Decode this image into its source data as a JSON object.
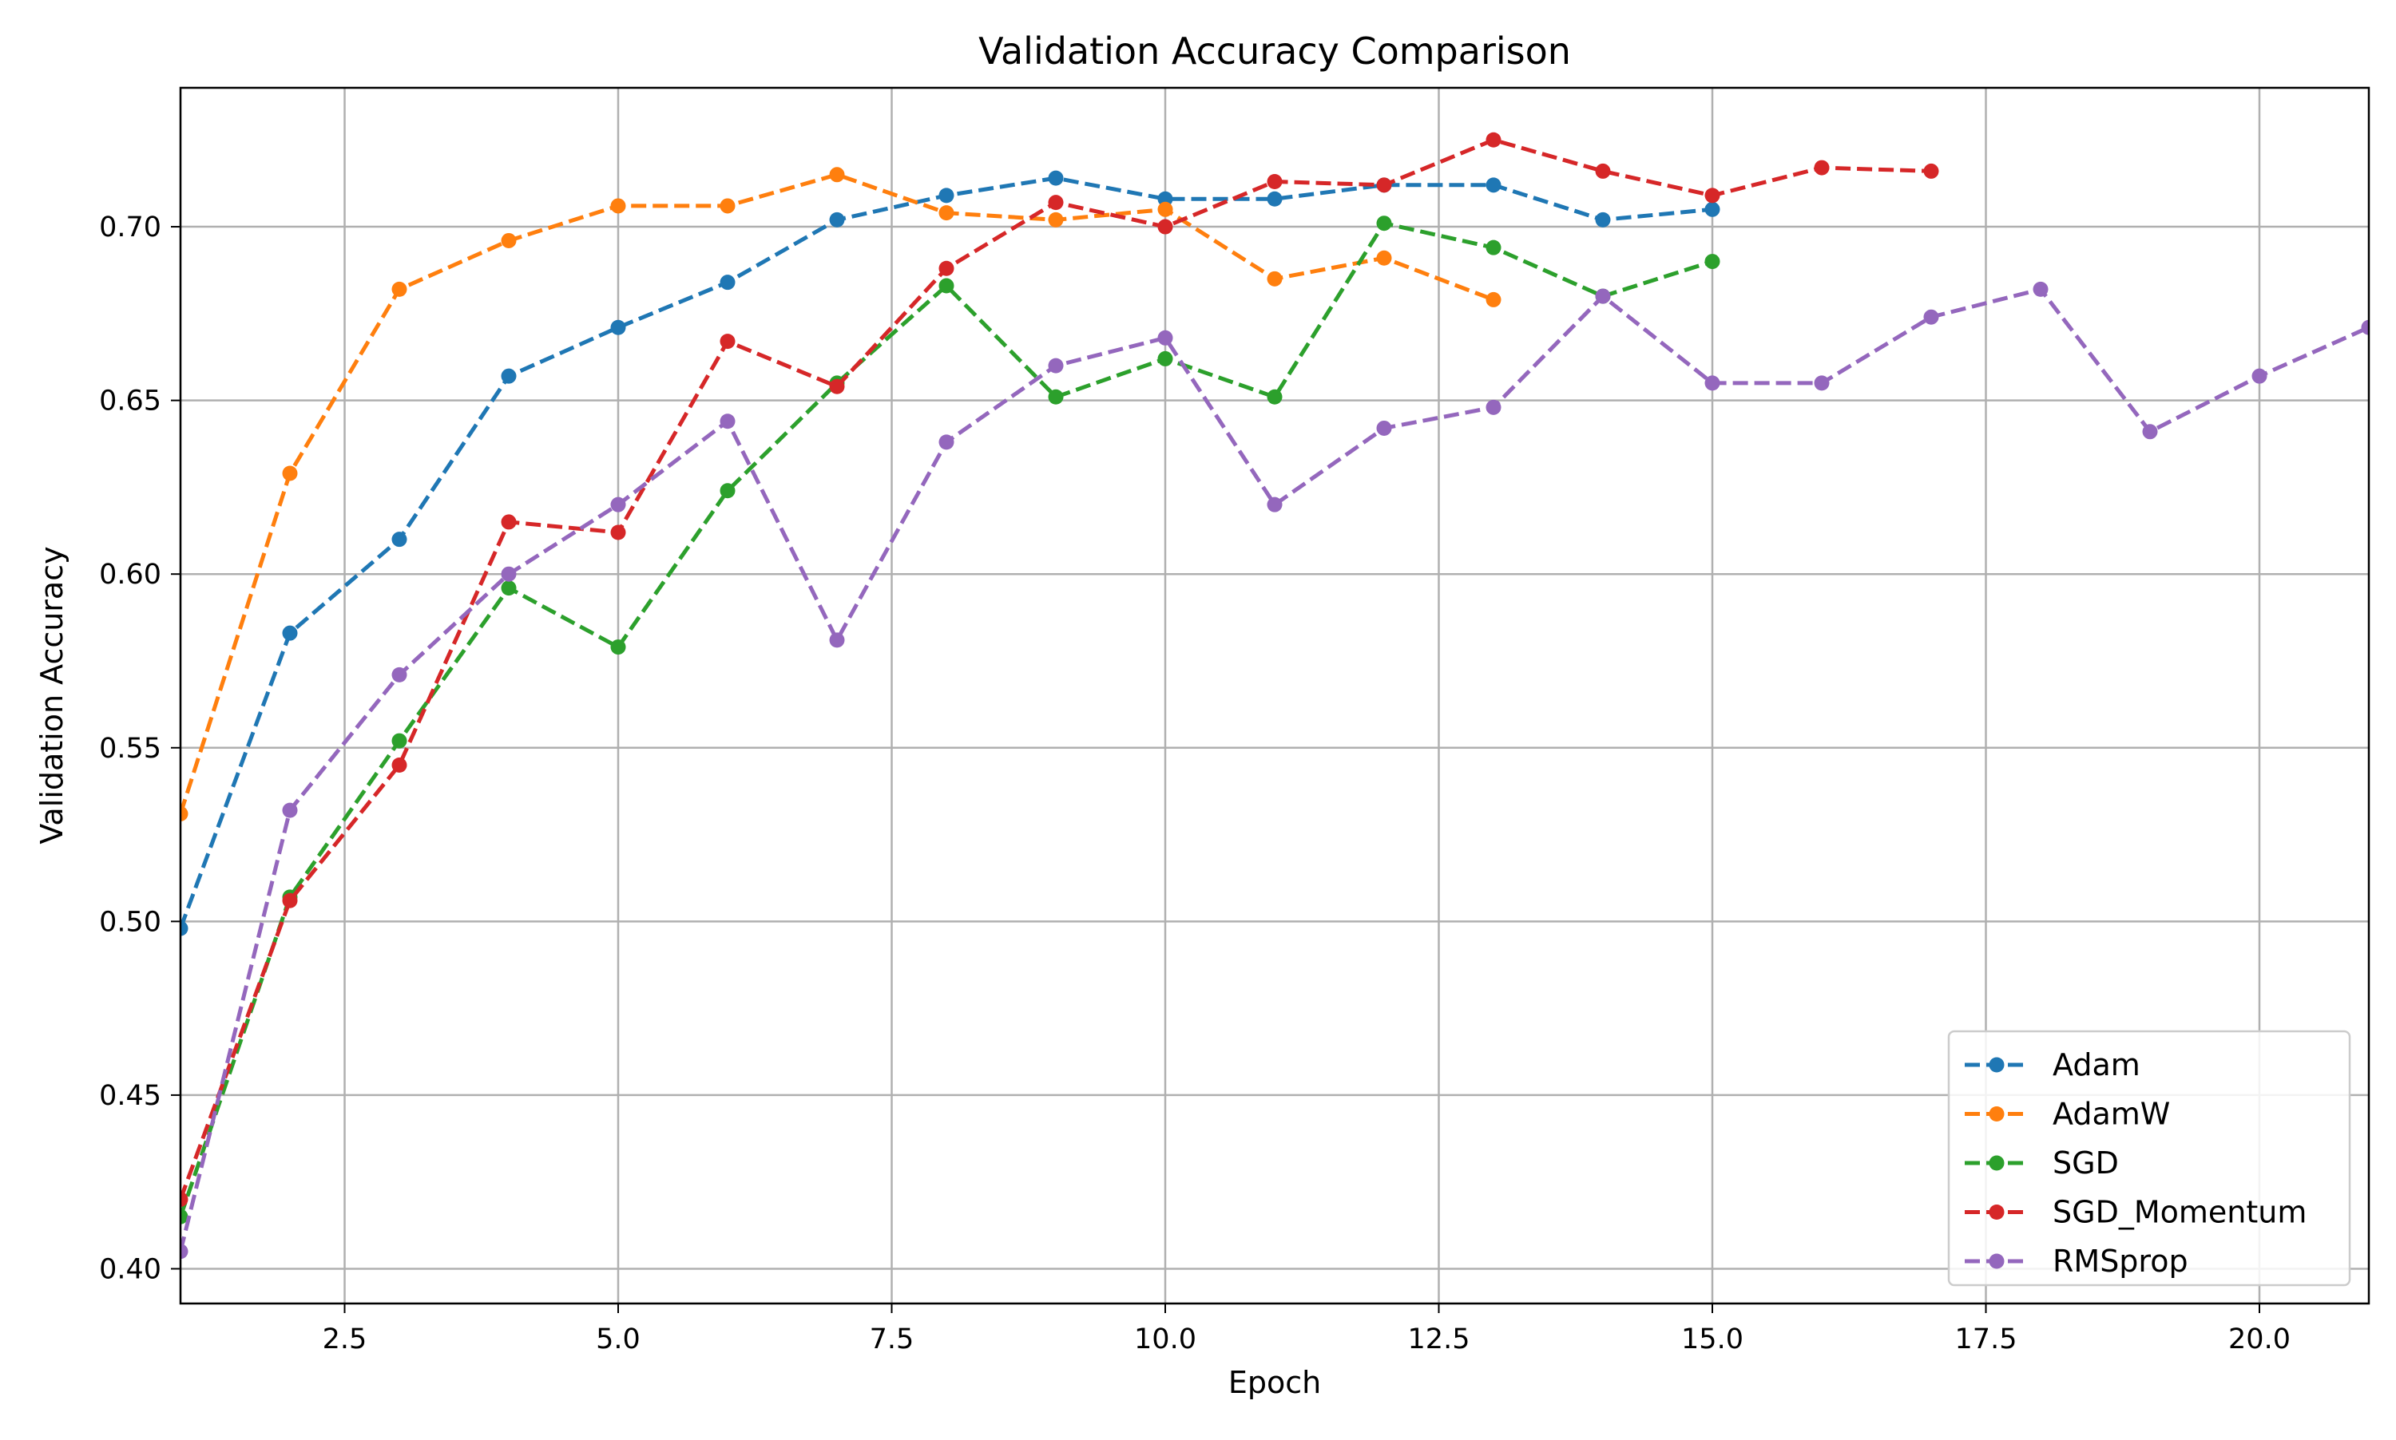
{
  "chart_data": {
    "type": "line",
    "title": "Validation Accuracy Comparison",
    "xlabel": "Epoch",
    "ylabel": "Validation Accuracy",
    "xlim": [
      1,
      21
    ],
    "ylim": [
      0.39,
      0.74
    ],
    "xticks": [
      2.5,
      5.0,
      7.5,
      10.0,
      12.5,
      15.0,
      17.5,
      20.0
    ],
    "xtick_labels": [
      "2.5",
      "5.0",
      "7.5",
      "10.0",
      "12.5",
      "15.0",
      "17.5",
      "20.0"
    ],
    "yticks": [
      0.4,
      0.45,
      0.5,
      0.55,
      0.6,
      0.65,
      0.7
    ],
    "ytick_labels": [
      "0.40",
      "0.45",
      "0.50",
      "0.55",
      "0.60",
      "0.65",
      "0.70"
    ],
    "grid": true,
    "legend_position": "bottom-right",
    "line_style": "dashed",
    "marker": "circle",
    "series": [
      {
        "name": "Adam",
        "color": "#1f77b4",
        "x": [
          1,
          2,
          3,
          4,
          5,
          6,
          7,
          8,
          9,
          10,
          11,
          12,
          13,
          14,
          15
        ],
        "y": [
          0.498,
          0.583,
          0.61,
          0.657,
          0.671,
          0.684,
          0.702,
          0.709,
          0.714,
          0.708,
          0.708,
          0.712,
          0.712,
          0.702,
          0.705
        ]
      },
      {
        "name": "AdamW",
        "color": "#ff7f0e",
        "x": [
          1,
          2,
          3,
          4,
          5,
          6,
          7,
          8,
          9,
          10,
          11,
          12,
          13
        ],
        "y": [
          0.531,
          0.629,
          0.682,
          0.696,
          0.706,
          0.706,
          0.715,
          0.704,
          0.702,
          0.705,
          0.685,
          0.691,
          0.679
        ]
      },
      {
        "name": "SGD",
        "color": "#2ca02c",
        "x": [
          1,
          2,
          3,
          4,
          5,
          6,
          7,
          8,
          9,
          10,
          11,
          12,
          13,
          14,
          15
        ],
        "y": [
          0.415,
          0.507,
          0.552,
          0.596,
          0.579,
          0.624,
          0.655,
          0.683,
          0.651,
          0.662,
          0.651,
          0.701,
          0.694,
          0.68,
          0.69
        ]
      },
      {
        "name": "SGD_Momentum",
        "color": "#d62728",
        "x": [
          1,
          2,
          3,
          4,
          5,
          6,
          7,
          8,
          9,
          10,
          11,
          12,
          13,
          14,
          15,
          16,
          17
        ],
        "y": [
          0.42,
          0.506,
          0.545,
          0.615,
          0.612,
          0.667,
          0.654,
          0.688,
          0.707,
          0.7,
          0.713,
          0.712,
          0.725,
          0.716,
          0.709,
          0.717,
          0.716
        ]
      },
      {
        "name": "RMSprop",
        "color": "#9467bd",
        "x": [
          1,
          2,
          3,
          4,
          5,
          6,
          7,
          8,
          9,
          10,
          11,
          12,
          13,
          14,
          15,
          16,
          17,
          18,
          19,
          20,
          21
        ],
        "y": [
          0.405,
          0.532,
          0.571,
          0.6,
          0.62,
          0.644,
          0.581,
          0.638,
          0.66,
          0.668,
          0.62,
          0.642,
          0.648,
          0.68,
          0.655,
          0.655,
          0.674,
          0.682,
          0.641,
          0.657,
          0.671
        ]
      }
    ]
  }
}
